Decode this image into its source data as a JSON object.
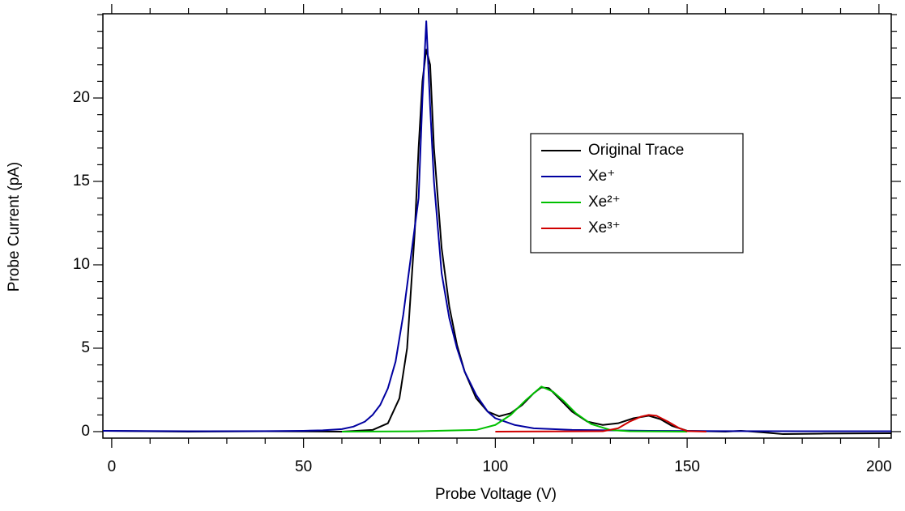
{
  "chart_data": {
    "type": "line",
    "x_label": "Probe Voltage (V)",
    "y_label": "Probe Current (pA)",
    "xlim": [
      -2.3,
      203.2
    ],
    "ylim": [
      -0.39,
      25.05
    ],
    "xticks": [
      0,
      50,
      100,
      150,
      200
    ],
    "yticks": [
      0,
      5,
      10,
      15,
      20
    ],
    "xminorticks": [
      10,
      20,
      30,
      40,
      60,
      70,
      80,
      90,
      110,
      120,
      130,
      140,
      160,
      170,
      180,
      190
    ],
    "yminorticks": [
      1,
      2,
      3,
      4,
      6,
      7,
      8,
      9,
      11,
      12,
      13,
      14,
      16,
      17,
      18,
      19,
      21,
      22,
      23,
      24,
      25
    ],
    "legend": "upper right",
    "series": [
      {
        "name": "Original Trace",
        "color": "#000000",
        "x": [
          -2.3,
          20,
          40,
          60,
          68,
          72,
          75,
          77,
          79,
          80,
          81,
          82,
          83,
          84,
          86,
          88,
          90,
          92,
          95,
          98,
          101,
          104,
          107,
          110,
          112,
          114,
          117,
          120,
          124,
          128,
          132,
          136,
          140,
          143,
          146,
          150,
          160,
          164,
          170,
          175,
          185,
          203.2
        ],
        "values": [
          0.05,
          0.0,
          0.02,
          0.0,
          0.1,
          0.5,
          2.0,
          5.0,
          12.0,
          17.0,
          21.0,
          22.9,
          22.0,
          17.0,
          11.0,
          7.5,
          5.2,
          3.6,
          2.0,
          1.2,
          0.92,
          1.1,
          1.6,
          2.3,
          2.65,
          2.6,
          1.9,
          1.2,
          0.6,
          0.4,
          0.5,
          0.8,
          0.95,
          0.75,
          0.35,
          0.05,
          0.0,
          0.05,
          -0.05,
          -0.15,
          -0.12,
          -0.1
        ]
      },
      {
        "name": "Xe⁺",
        "color": "#0000a0",
        "x": [
          -2.3,
          20,
          40,
          50,
          55,
          60,
          63,
          66,
          68,
          70,
          72,
          74,
          76,
          78,
          80,
          81,
          82,
          83,
          84,
          86,
          88,
          90,
          92,
          95,
          98,
          100,
          105,
          110,
          120,
          140,
          160,
          180,
          203.2
        ],
        "values": [
          0.05,
          0.02,
          0.03,
          0.05,
          0.08,
          0.15,
          0.3,
          0.6,
          1.0,
          1.6,
          2.6,
          4.2,
          7.0,
          10.5,
          14.0,
          20.0,
          24.6,
          19.5,
          15.0,
          9.5,
          6.8,
          5.0,
          3.6,
          2.2,
          1.2,
          0.8,
          0.4,
          0.2,
          0.1,
          0.05,
          0.03,
          0.02,
          0.02
        ]
      },
      {
        "name": "Xe²⁺",
        "color": "#00c000",
        "x": [
          60,
          80,
          95,
          100,
          104,
          108,
          112,
          115,
          118,
          121,
          125,
          130,
          135,
          150
        ],
        "values": [
          0.0,
          0.02,
          0.1,
          0.4,
          1.0,
          1.9,
          2.7,
          2.4,
          1.8,
          1.1,
          0.45,
          0.1,
          0.02,
          0.0
        ]
      },
      {
        "name": "Xe³⁺",
        "color": "#d00000",
        "x": [
          100,
          128,
          132,
          135,
          138,
          140,
          142,
          145,
          148,
          150,
          155
        ],
        "values": [
          0.0,
          0.02,
          0.2,
          0.6,
          0.9,
          1.0,
          0.95,
          0.6,
          0.2,
          0.03,
          0.0
        ]
      }
    ]
  }
}
